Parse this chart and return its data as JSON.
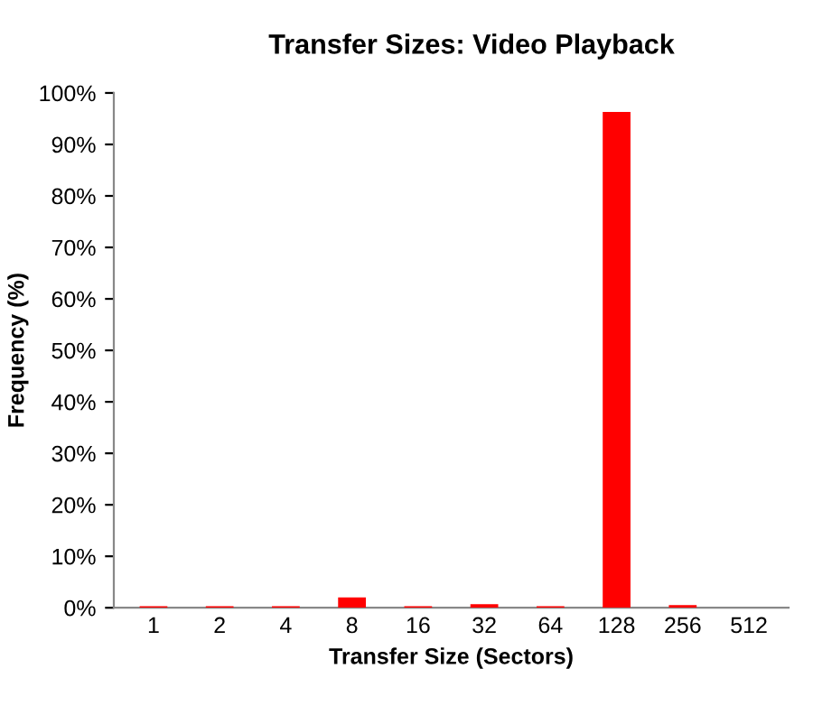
{
  "chart_data": {
    "type": "bar",
    "title": "Transfer Sizes: Video Playback",
    "xlabel": "Transfer Size (Sectors)",
    "ylabel": "Frequency (%)",
    "categories": [
      "1",
      "2",
      "4",
      "8",
      "16",
      "32",
      "64",
      "128",
      "256",
      "512"
    ],
    "values": [
      0.3,
      0.3,
      0.3,
      2,
      0.3,
      0.7,
      0.3,
      96.3,
      0.5,
      0
    ],
    "color": "#ff0000",
    "ylim": [
      0,
      100
    ],
    "yticks": [
      {
        "value": 0,
        "label": "0%"
      },
      {
        "value": 10,
        "label": "10%"
      },
      {
        "value": 20,
        "label": "20%"
      },
      {
        "value": 30,
        "label": "30%"
      },
      {
        "value": 40,
        "label": "40%"
      },
      {
        "value": 50,
        "label": "50%"
      },
      {
        "value": 60,
        "label": "60%"
      },
      {
        "value": 70,
        "label": "70%"
      },
      {
        "value": 80,
        "label": "80%"
      },
      {
        "value": 90,
        "label": "90%"
      },
      {
        "value": 100,
        "label": "100%"
      }
    ],
    "grid": false
  }
}
